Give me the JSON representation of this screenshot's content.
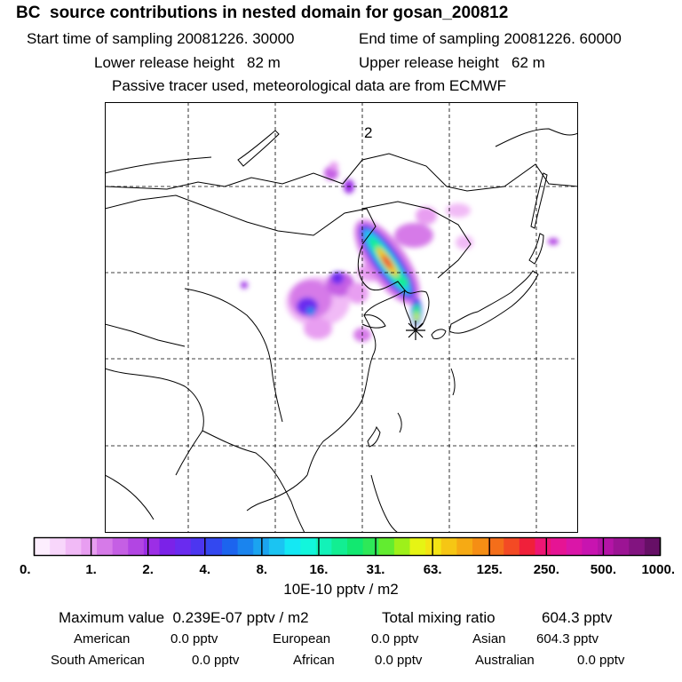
{
  "header": {
    "title": "BC  source contributions in nested domain for gosan_200812",
    "start_label": "Start time of sampling 20081226. 30000",
    "end_label": "End time of sampling 20081226. 60000",
    "lower_label": "Lower release height   82 m",
    "upper_label": "Upper release height   62 m",
    "tracer_note": "Passive tracer used, meteorological data are from ECMWF"
  },
  "map": {
    "panel_label": "2",
    "receptor_icon": "star-marker-icon"
  },
  "colorbar": {
    "tick_labels": [
      "0.",
      "1.",
      "2.",
      "4.",
      "8.",
      "16.",
      "31.",
      "63.",
      "125.",
      "250.",
      "500.",
      "1000."
    ],
    "colors": [
      "#fdeefe",
      "#f8d6fb",
      "#f1baf6",
      "#e89ef1",
      "#d67ae8",
      "#c55fe4",
      "#b245e3",
      "#9c2ee6",
      "#7b22e8",
      "#6a2bef",
      "#4c36f0",
      "#3348f0",
      "#1c64ee",
      "#1a84ee",
      "#1ba4f0",
      "#1bc4f2",
      "#14e8f4",
      "#12f6dc",
      "#12f2b8",
      "#12ee92",
      "#12e870",
      "#2ee858",
      "#62ec30",
      "#9ef01a",
      "#e6f414",
      "#f4e414",
      "#f6c614",
      "#f6aa14",
      "#f58e14",
      "#f46e1a",
      "#f34a24",
      "#f0203a",
      "#ee1674",
      "#e61494",
      "#da16a8",
      "#c814b0",
      "#b414a6",
      "#9c1494",
      "#821480",
      "#660f66"
    ],
    "unit_label": "10E-10 pptv / m2"
  },
  "summary": {
    "max_label": "Maximum value  0.239E-07 pptv / m2",
    "total_label": "Total mixing ratio",
    "total_value": "604.3 pptv",
    "regions": [
      {
        "name": "American",
        "value": "0.0 pptv"
      },
      {
        "name": "European",
        "value": "0.0 pptv"
      },
      {
        "name": "Asian",
        "value": "604.3 pptv"
      },
      {
        "name": "South American",
        "value": "0.0 pptv"
      },
      {
        "name": "African",
        "value": "0.0 pptv"
      },
      {
        "name": "Australian",
        "value": "0.0 pptv"
      }
    ]
  }
}
